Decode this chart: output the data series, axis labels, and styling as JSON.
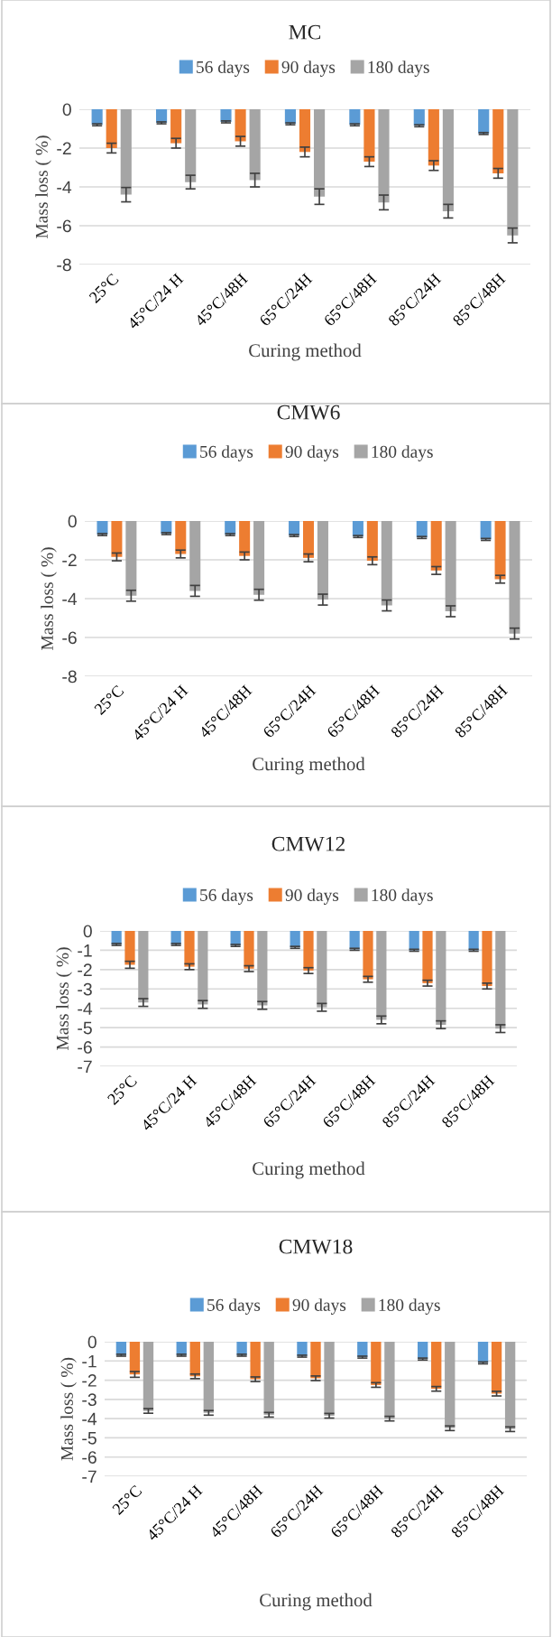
{
  "chart_data": [
    {
      "type": "bar",
      "title": "MC",
      "xlabel": "Curing method",
      "ylabel": "Mass loss ( %)",
      "categories": [
        "25°C",
        "45°C/24 H",
        "45°C/48H",
        "65°C/24H",
        "65°C/48H",
        "85°C/24H",
        "85°C/48H"
      ],
      "ylim": [
        -8,
        0
      ],
      "yticks": [
        -8,
        -6,
        -4,
        -2,
        0
      ],
      "grid": "y",
      "legend": "top",
      "series": [
        {
          "name": "56 days",
          "color": "#5b9bd5",
          "values": [
            -0.8,
            -0.7,
            -0.65,
            -0.75,
            -0.8,
            -0.85,
            -1.25
          ],
          "errors": [
            0.05,
            0.05,
            0.05,
            0.05,
            0.05,
            0.05,
            0.05
          ]
        },
        {
          "name": "90 days",
          "color": "#ed7d31",
          "values": [
            -2.0,
            -1.75,
            -1.65,
            -2.2,
            -2.7,
            -2.9,
            -3.3
          ],
          "errors": [
            0.25,
            0.25,
            0.25,
            0.25,
            0.25,
            0.25,
            0.25
          ]
        },
        {
          "name": "180 days",
          "color": "#a5a5a5",
          "values": [
            -4.4,
            -3.75,
            -3.65,
            -4.5,
            -4.8,
            -5.25,
            -6.5
          ],
          "errors": [
            0.37,
            0.35,
            0.35,
            0.4,
            0.38,
            0.35,
            0.38
          ]
        }
      ]
    },
    {
      "type": "bar",
      "title": "CMW6",
      "xlabel": "Curing method",
      "ylabel": "Mass loss ( %)",
      "categories": [
        "25°C",
        "45°C/24 H",
        "45°C/48H",
        "65°C/24H",
        "65°C/48H",
        "85°C/24H",
        "85°C/48H"
      ],
      "ylim": [
        -8,
        0
      ],
      "yticks": [
        -8,
        -6,
        -4,
        -2,
        0
      ],
      "grid": "y",
      "legend": "top",
      "series": [
        {
          "name": "56 days",
          "color": "#5b9bd5",
          "values": [
            -0.7,
            -0.65,
            -0.7,
            -0.75,
            -0.8,
            -0.85,
            -0.95
          ],
          "errors": [
            0.05,
            0.05,
            0.05,
            0.05,
            0.05,
            0.05,
            0.05
          ]
        },
        {
          "name": "90 days",
          "color": "#ed7d31",
          "values": [
            -1.85,
            -1.7,
            -1.8,
            -1.9,
            -2.05,
            -2.55,
            -3.0
          ],
          "errors": [
            0.2,
            0.2,
            0.2,
            0.2,
            0.2,
            0.2,
            0.2
          ]
        },
        {
          "name": "180 days",
          "color": "#a5a5a5",
          "values": [
            -3.85,
            -3.6,
            -3.8,
            -4.05,
            -4.35,
            -4.65,
            -5.8
          ],
          "errors": [
            0.28,
            0.28,
            0.28,
            0.28,
            0.28,
            0.28,
            0.28
          ]
        }
      ]
    },
    {
      "type": "bar",
      "title": "CMW12",
      "xlabel": "Curing method",
      "ylabel": "Mass loss ( %)",
      "categories": [
        "25°C",
        "45°C/24 H",
        "45°C/48H",
        "65°C/24H",
        "65°C/48H",
        "85°C/24H",
        "85°C/48H"
      ],
      "ylim": [
        -7,
        0
      ],
      "yticks": [
        -7,
        -6,
        -5,
        -4,
        -3,
        -2,
        -1,
        0
      ],
      "grid": "y",
      "legend": "top",
      "series": [
        {
          "name": "56 days",
          "color": "#5b9bd5",
          "values": [
            -0.7,
            -0.7,
            -0.75,
            -0.85,
            -0.95,
            -1.0,
            -1.0
          ],
          "errors": [
            0.05,
            0.05,
            0.05,
            0.05,
            0.05,
            0.05,
            0.05
          ]
        },
        {
          "name": "90 days",
          "color": "#ed7d31",
          "values": [
            -1.75,
            -1.85,
            -1.95,
            -2.05,
            -2.5,
            -2.7,
            -2.85
          ],
          "errors": [
            0.18,
            0.15,
            0.15,
            0.15,
            0.15,
            0.15,
            0.15
          ]
        },
        {
          "name": "180 days",
          "color": "#a5a5a5",
          "values": [
            -3.7,
            -3.8,
            -3.85,
            -3.95,
            -4.6,
            -4.85,
            -5.05
          ],
          "errors": [
            0.2,
            0.2,
            0.2,
            0.2,
            0.2,
            0.2,
            0.2
          ]
        }
      ]
    },
    {
      "type": "bar",
      "title": "CMW18",
      "xlabel": "Curing method",
      "ylabel": "Mass loss ( %)",
      "categories": [
        "25°C",
        "45°C/24 H",
        "45°C/48H",
        "65°C/24H",
        "65°C/48H",
        "85°C/24H",
        "85°C/48H"
      ],
      "ylim": [
        -7,
        0
      ],
      "yticks": [
        -7,
        -6,
        -5,
        -4,
        -3,
        -2,
        -1,
        0
      ],
      "grid": "y",
      "legend": "top",
      "series": [
        {
          "name": "56 days",
          "color": "#5b9bd5",
          "values": [
            -0.7,
            -0.7,
            -0.7,
            -0.75,
            -0.8,
            -0.9,
            -1.1
          ],
          "errors": [
            0.05,
            0.05,
            0.05,
            0.05,
            0.05,
            0.05,
            0.05
          ]
        },
        {
          "name": "90 days",
          "color": "#ed7d31",
          "values": [
            -1.7,
            -1.8,
            -1.95,
            -1.9,
            -2.25,
            -2.45,
            -2.7
          ],
          "errors": [
            0.15,
            0.12,
            0.12,
            0.12,
            0.12,
            0.12,
            0.12
          ]
        },
        {
          "name": "180 days",
          "color": "#a5a5a5",
          "values": [
            -3.6,
            -3.7,
            -3.8,
            -3.85,
            -4.0,
            -4.5,
            -4.55
          ],
          "errors": [
            0.12,
            0.12,
            0.12,
            0.12,
            0.12,
            0.12,
            0.12
          ]
        }
      ]
    }
  ]
}
